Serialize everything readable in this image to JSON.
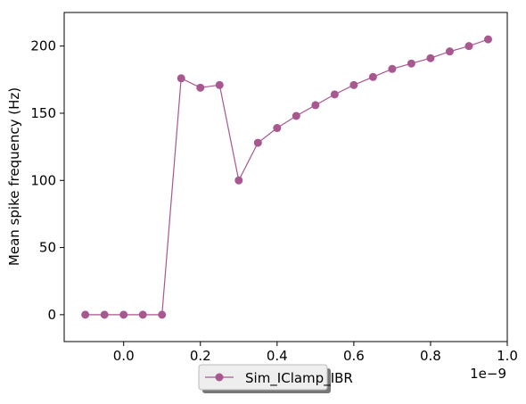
{
  "chart_data": {
    "type": "line",
    "title": "",
    "xlabel": "",
    "ylabel": "Mean spike frequency (Hz)",
    "x_offset_label": "1e−9",
    "xlim": [
      -0.155,
      1.0
    ],
    "ylim": [
      -20,
      225
    ],
    "x_ticks": [
      0.0,
      0.2,
      0.4,
      0.6,
      0.8,
      1.0
    ],
    "x_tick_labels": [
      "0.0",
      "0.2",
      "0.4",
      "0.6",
      "0.8",
      "1.0"
    ],
    "y_ticks": [
      0,
      50,
      100,
      150,
      200
    ],
    "y_tick_labels": [
      "0",
      "50",
      "100",
      "150",
      "200"
    ],
    "grid": false,
    "legend_placement": "bottom-center, below axes",
    "series": [
      {
        "name": "Sim_IClamp_IBR",
        "color": "#a8578f",
        "marker": "circle",
        "x": [
          -0.1,
          -0.05,
          0.0,
          0.05,
          0.1,
          0.15,
          0.2,
          0.25,
          0.3,
          0.35,
          0.4,
          0.45,
          0.5,
          0.55,
          0.6,
          0.65,
          0.7,
          0.75,
          0.8,
          0.85,
          0.9,
          0.95
        ],
        "y": [
          0,
          0,
          0,
          0,
          0,
          176,
          169,
          171,
          100,
          128,
          139,
          148,
          156,
          164,
          171,
          177,
          183,
          187,
          191,
          196,
          200,
          205
        ]
      }
    ]
  }
}
